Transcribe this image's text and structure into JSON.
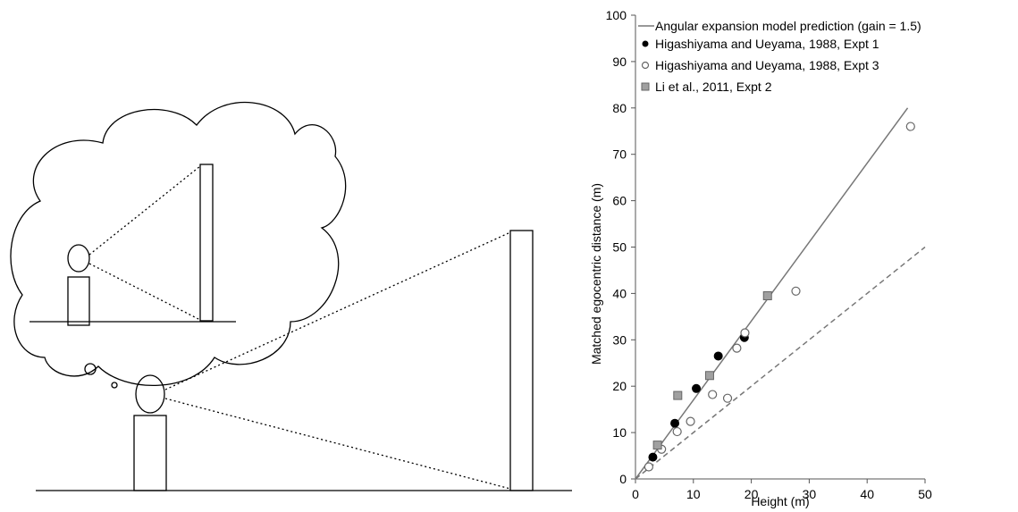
{
  "chart_data": {
    "type": "scatter",
    "title": "",
    "xlabel": "Height (m)",
    "ylabel": "Matched egocentric distance (m)",
    "xlim": [
      0,
      50
    ],
    "ylim": [
      0,
      100
    ],
    "xticks": [
      0,
      10,
      20,
      30,
      40,
      50
    ],
    "yticks": [
      0,
      10,
      20,
      30,
      40,
      50,
      60,
      70,
      80,
      90,
      100
    ],
    "grid": false,
    "legend_position": "top-left",
    "lines": [
      {
        "name": "Angular expansion model prediction (gain = 1.5)",
        "style": "solid",
        "color": "#777777",
        "x": [
          0,
          47
        ],
        "y": [
          0,
          80
        ]
      },
      {
        "name": "",
        "style": "dashed",
        "color": "#777777",
        "x": [
          0,
          50
        ],
        "y": [
          0,
          50
        ]
      }
    ],
    "series": [
      {
        "name": "Higashiyama and Ueyama, 1988, Expt 1",
        "marker": "filled-circle",
        "color": "#000000",
        "x": [
          3,
          6.8,
          10.5,
          14.3,
          18.8
        ],
        "y": [
          4.7,
          12,
          19.5,
          26.5,
          30.5
        ]
      },
      {
        "name": "Higashiyama and Ueyama, 1988, Expt 3",
        "marker": "open-circle",
        "color": "#000000",
        "x": [
          2.3,
          4.5,
          7.2,
          9.5,
          13.3,
          15.9,
          17.5,
          18.9,
          27.7,
          47.5
        ],
        "y": [
          2.6,
          6.4,
          10.2,
          12.4,
          18.2,
          17.4,
          28.2,
          31.5,
          40.5,
          76
        ]
      },
      {
        "name": "Li et al., 2011, Expt 2",
        "marker": "gray-square",
        "color": "#a0a0a0",
        "x": [
          3.8,
          7.3,
          12.8,
          22.8
        ],
        "y": [
          7.3,
          18,
          22.3,
          39.5
        ]
      }
    ]
  }
}
